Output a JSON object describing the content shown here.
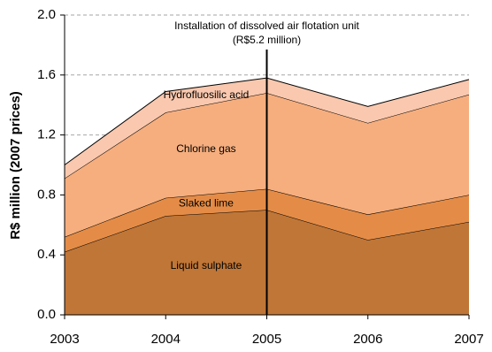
{
  "chart_data": {
    "type": "stacked-area",
    "ylabel": "R$ million (2007 prices)",
    "categories": [
      "2003",
      "2004",
      "2005",
      "2006",
      "2007"
    ],
    "series": [
      {
        "name": "Liquid sulphate",
        "color": "#c07637",
        "values": [
          0.42,
          0.66,
          0.7,
          0.5,
          0.62
        ]
      },
      {
        "name": "Slaked lime",
        "color": "#e48c47",
        "values": [
          0.1,
          0.12,
          0.14,
          0.17,
          0.18
        ]
      },
      {
        "name": "Chlorine gas",
        "color": "#f6ae7e",
        "values": [
          0.39,
          0.57,
          0.64,
          0.61,
          0.67
        ]
      },
      {
        "name": "Hydrofluosilic acid",
        "color": "#f9c8ae",
        "values": [
          0.09,
          0.14,
          0.1,
          0.11,
          0.1
        ]
      }
    ],
    "annotation": [
      "Installation of dissolved air flotation unit",
      "(R$5.2 million)"
    ],
    "ylim": [
      0,
      2.0
    ],
    "yticks": [
      {
        "value": 0,
        "label": "0.0"
      },
      0.4,
      0.8,
      1.2,
      1.6,
      {
        "value": 2.0,
        "label": "2.0"
      }
    ],
    "grid": true
  }
}
